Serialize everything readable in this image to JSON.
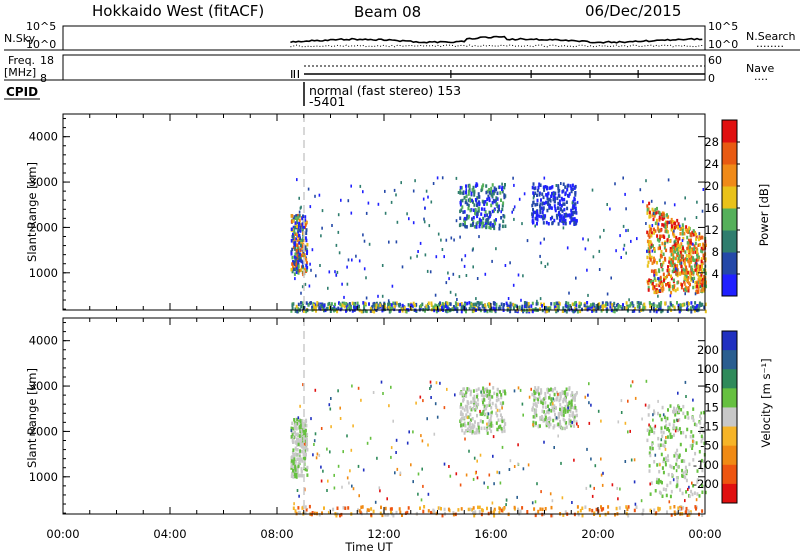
{
  "header": {
    "title": "Hokkaido West (fitACF)",
    "beam": "Beam 08",
    "date": "06/Dec/2015"
  },
  "status_panels": {
    "nsky": {
      "label": "N.Sky",
      "left_ticks": [
        "10^5",
        "10^0"
      ],
      "right_ticks": [
        "10^5",
        "10^0"
      ],
      "right_label": "N.Search",
      "right_label_dots": "........"
    },
    "freq": {
      "label_line1": "Freq.",
      "label_line2": "[MHz]",
      "left_ticks": [
        "18",
        "8"
      ],
      "right_ticks": [
        "60",
        "0"
      ],
      "right_label": "Nave",
      "right_label_dots": "...."
    },
    "cpid": {
      "label": "CPID",
      "mode_text": "normal (fast stereo) 153",
      "mode_code": "-5401"
    }
  },
  "chart_data": [
    {
      "type": "heatmap",
      "name": "Power",
      "ylabel": "Slant Range [km]",
      "xlabel": "Time UT",
      "xlim": [
        0,
        24
      ],
      "ylim": [
        180,
        4500
      ],
      "yticks": [
        "1000",
        "2000",
        "3000",
        "4000"
      ],
      "colorbar": {
        "label": "Power [dB]",
        "ticks": [
          "4",
          "8",
          "12",
          "16",
          "20",
          "24",
          "28"
        ],
        "colors": [
          "#2020ff",
          "#2448a8",
          "#2f7d6e",
          "#55b05a",
          "#e9c21a",
          "#f08a18",
          "#e85a12",
          "#e01010"
        ]
      },
      "data_start_ut": 8.5,
      "regions": [
        {
          "t": [
            8.5,
            9.1
          ],
          "r": [
            1000,
            2300
          ],
          "level": "mixed-high"
        },
        {
          "t": [
            14.8,
            16.5
          ],
          "r": [
            2000,
            3000
          ],
          "level": "mixed-low"
        },
        {
          "t": [
            17.5,
            19.2
          ],
          "r": [
            2100,
            3000
          ],
          "level": "low"
        },
        {
          "t": [
            21.8,
            24.0
          ],
          "r": [
            600,
            2600
          ],
          "level": "high"
        },
        {
          "t": [
            8.5,
            24.0
          ],
          "r": [
            180,
            380
          ],
          "level": "ground-scatter"
        }
      ]
    },
    {
      "type": "heatmap",
      "name": "Velocity",
      "ylabel": "Slant Range [km]",
      "xlabel": "Time UT",
      "xlim": [
        0,
        24
      ],
      "ylim": [
        180,
        4500
      ],
      "yticks": [
        "1000",
        "2000",
        "3000",
        "4000"
      ],
      "xticks": [
        "00:00",
        "04:00",
        "08:00",
        "12:00",
        "16:00",
        "20:00",
        "00:00"
      ],
      "colorbar": {
        "label": "Velocity [m s⁻¹]",
        "ticks": [
          "200",
          "100",
          "50",
          "15",
          "-15",
          "-50",
          "-100",
          "-200"
        ],
        "colors": [
          "#2030c0",
          "#2a5e90",
          "#2f8a5a",
          "#66c040",
          "#c8c8c8",
          "#f6b428",
          "#f08a14",
          "#ee5510",
          "#e01010"
        ]
      },
      "data_start_ut": 8.5,
      "regions": [
        {
          "t": [
            8.5,
            9.1
          ],
          "r": [
            1000,
            2300
          ],
          "level": "near-zero"
        },
        {
          "t": [
            14.8,
            16.5
          ],
          "r": [
            2000,
            3000
          ],
          "level": "near-zero"
        },
        {
          "t": [
            17.5,
            19.2
          ],
          "r": [
            2100,
            3000
          ],
          "level": "near-zero"
        },
        {
          "t": [
            21.8,
            24.0
          ],
          "r": [
            600,
            2600
          ],
          "level": "near-zero-positive"
        },
        {
          "t": [
            8.5,
            24.0
          ],
          "r": [
            180,
            380
          ],
          "level": "negative"
        }
      ]
    }
  ]
}
